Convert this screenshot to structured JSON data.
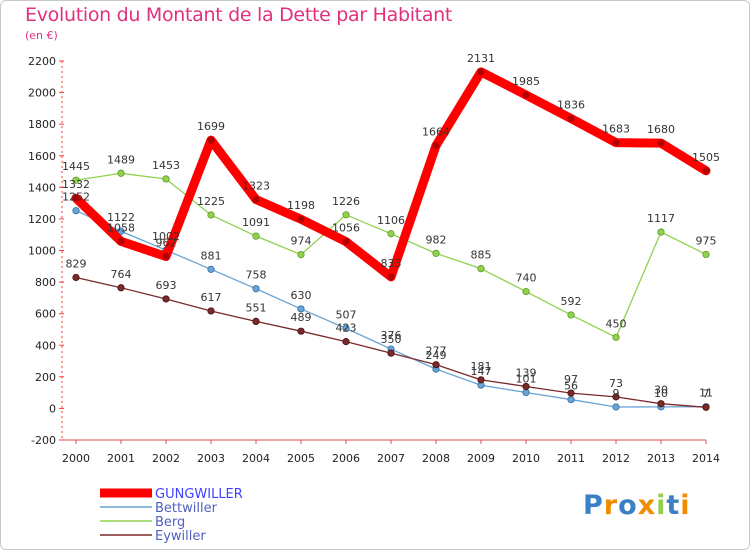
{
  "chart_data": {
    "type": "line",
    "title": "Evolution du Montant de la Dette par Habitant",
    "subtitle": "(en €)",
    "categories": [
      "2000",
      "2001",
      "2002",
      "2003",
      "2004",
      "2005",
      "2006",
      "2007",
      "2008",
      "2009",
      "2010",
      "2011",
      "2012",
      "2013",
      "2014"
    ],
    "ylim": [
      -200,
      2200
    ],
    "yticks": [
      -200,
      0,
      200,
      400,
      600,
      800,
      1000,
      1200,
      1400,
      1600,
      1800,
      2000,
      2200
    ],
    "grid": false,
    "legend_position": "bottom-left",
    "series": [
      {
        "name": "GUNGWILLER",
        "color": "#ff0000",
        "values": [
          1332,
          1058,
          962,
          1699,
          1323,
          1198,
          1056,
          833,
          1664,
          2131,
          1985,
          1836,
          1683,
          1680,
          1505
        ]
      },
      {
        "name": "Bettwiller",
        "color": "#6aa3d5",
        "values": [
          1252,
          1122,
          1002,
          881,
          758,
          630,
          507,
          376,
          249,
          147,
          101,
          56,
          9,
          10,
          11
        ]
      },
      {
        "name": "Berg",
        "color": "#92d050",
        "values": [
          1445,
          1489,
          1453,
          1225,
          1091,
          974,
          1226,
          1106,
          982,
          885,
          740,
          592,
          450,
          1117,
          975
        ]
      },
      {
        "name": "Eywiller",
        "color": "#7a2a2a",
        "values": [
          829,
          764,
          693,
          617,
          551,
          489,
          423,
          350,
          277,
          181,
          139,
          97,
          73,
          30,
          7
        ]
      }
    ]
  },
  "brand": {
    "logo_text": "Proxiti",
    "colors": [
      "#3b7fc4",
      "#f08c00",
      "#3b7fc4",
      "#f08c00",
      "#92d050",
      "#3b7fc4",
      "#f08c00"
    ]
  }
}
